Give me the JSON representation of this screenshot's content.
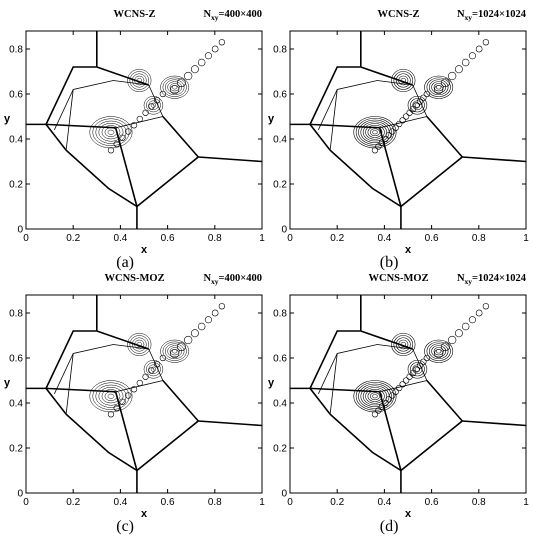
{
  "chart_data": [
    {
      "type": "contour",
      "title": "WCNS-Z",
      "resolution_label": "N",
      "resolution_sub": "xy",
      "resolution_value": "=400×400",
      "caption": "(a)",
      "xlabel": "x",
      "ylabel": "y",
      "xlim": [
        0,
        1
      ],
      "ylim": [
        0,
        0.88
      ],
      "xticks": [
        "0",
        "0.2",
        "0.4",
        "0.6",
        "0.8",
        "1"
      ],
      "yticks": [
        "0",
        "0.2",
        "0.4",
        "0.6",
        "0.8"
      ]
    },
    {
      "type": "contour",
      "title": "WCNS-Z",
      "resolution_label": "N",
      "resolution_sub": "xy",
      "resolution_value": "=1024×1024",
      "caption": "(b)",
      "xlabel": "x",
      "ylabel": "y",
      "xlim": [
        0,
        1
      ],
      "ylim": [
        0,
        0.88
      ],
      "xticks": [
        "0",
        "0.2",
        "0.4",
        "0.6",
        "0.8",
        "1"
      ],
      "yticks": [
        "0",
        "0.2",
        "0.4",
        "0.6",
        "0.8"
      ]
    },
    {
      "type": "contour",
      "title": "WCNS-MOZ",
      "resolution_label": "N",
      "resolution_sub": "xy",
      "resolution_value": "=400×400",
      "caption": "(c)",
      "xlabel": "x",
      "ylabel": "y",
      "xlim": [
        0,
        1
      ],
      "ylim": [
        0,
        0.88
      ],
      "xticks": [
        "0",
        "0.2",
        "0.4",
        "0.6",
        "0.8",
        "1"
      ],
      "yticks": [
        "0",
        "0.2",
        "0.4",
        "0.6",
        "0.8"
      ]
    },
    {
      "type": "contour",
      "title": "WCNS-MOZ",
      "resolution_label": "N",
      "resolution_sub": "xy",
      "resolution_value": "=1024×1024",
      "caption": "(d)",
      "xlabel": "x",
      "ylabel": "y",
      "xlim": [
        0,
        1
      ],
      "ylim": [
        0,
        0.88
      ],
      "xticks": [
        "0",
        "0.2",
        "0.4",
        "0.6",
        "0.8",
        "1"
      ],
      "yticks": [
        "0",
        "0.2",
        "0.4",
        "0.6",
        "0.8"
      ]
    }
  ]
}
